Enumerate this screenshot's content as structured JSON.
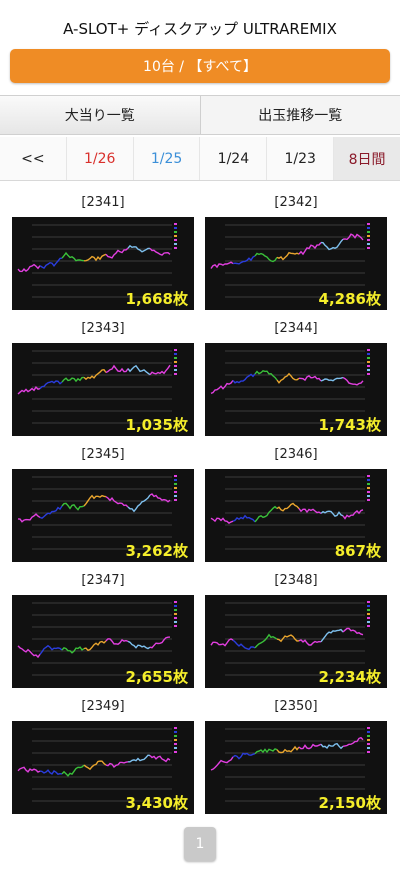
{
  "header": {
    "title": "A-SLOT+ ディスクアップ ULTRAREMIX"
  },
  "filter": {
    "label": "10台 / 【すべて】"
  },
  "tabs": [
    {
      "label": "大当り一覧"
    },
    {
      "label": "出玉推移一覧"
    }
  ],
  "dates": [
    {
      "label": "<<",
      "color": "#222222"
    },
    {
      "label": "1/26",
      "color": "#d9302c"
    },
    {
      "label": "1/25",
      "color": "#3b8fd8"
    },
    {
      "label": "1/24",
      "color": "#222222"
    },
    {
      "label": "1/23",
      "color": "#222222"
    },
    {
      "label": "8日間",
      "color": "#8a1a2a"
    }
  ],
  "machines": [
    {
      "id": "[2341]",
      "coins": "1,668枚"
    },
    {
      "id": "[2342]",
      "coins": "4,286枚"
    },
    {
      "id": "[2343]",
      "coins": "1,035枚"
    },
    {
      "id": "[2344]",
      "coins": "1,743枚"
    },
    {
      "id": "[2345]",
      "coins": "3,262枚"
    },
    {
      "id": "[2346]",
      "coins": "867枚"
    },
    {
      "id": "[2347]",
      "coins": "2,655枚"
    },
    {
      "id": "[2348]",
      "coins": "2,234枚"
    },
    {
      "id": "[2349]",
      "coins": "3,430枚"
    },
    {
      "id": "[2350]",
      "coins": "2,150枚"
    }
  ],
  "pagination": {
    "current": "1"
  },
  "colors": {
    "accent": "#ef8c25",
    "coin_text": "#f5ee2b",
    "chart_bg": "#111111",
    "series": [
      "#e23fe0",
      "#2a3ddc",
      "#3ac03a",
      "#e9a52e",
      "#e23fe0",
      "#7ec0ee",
      "#e23fe0"
    ]
  }
}
